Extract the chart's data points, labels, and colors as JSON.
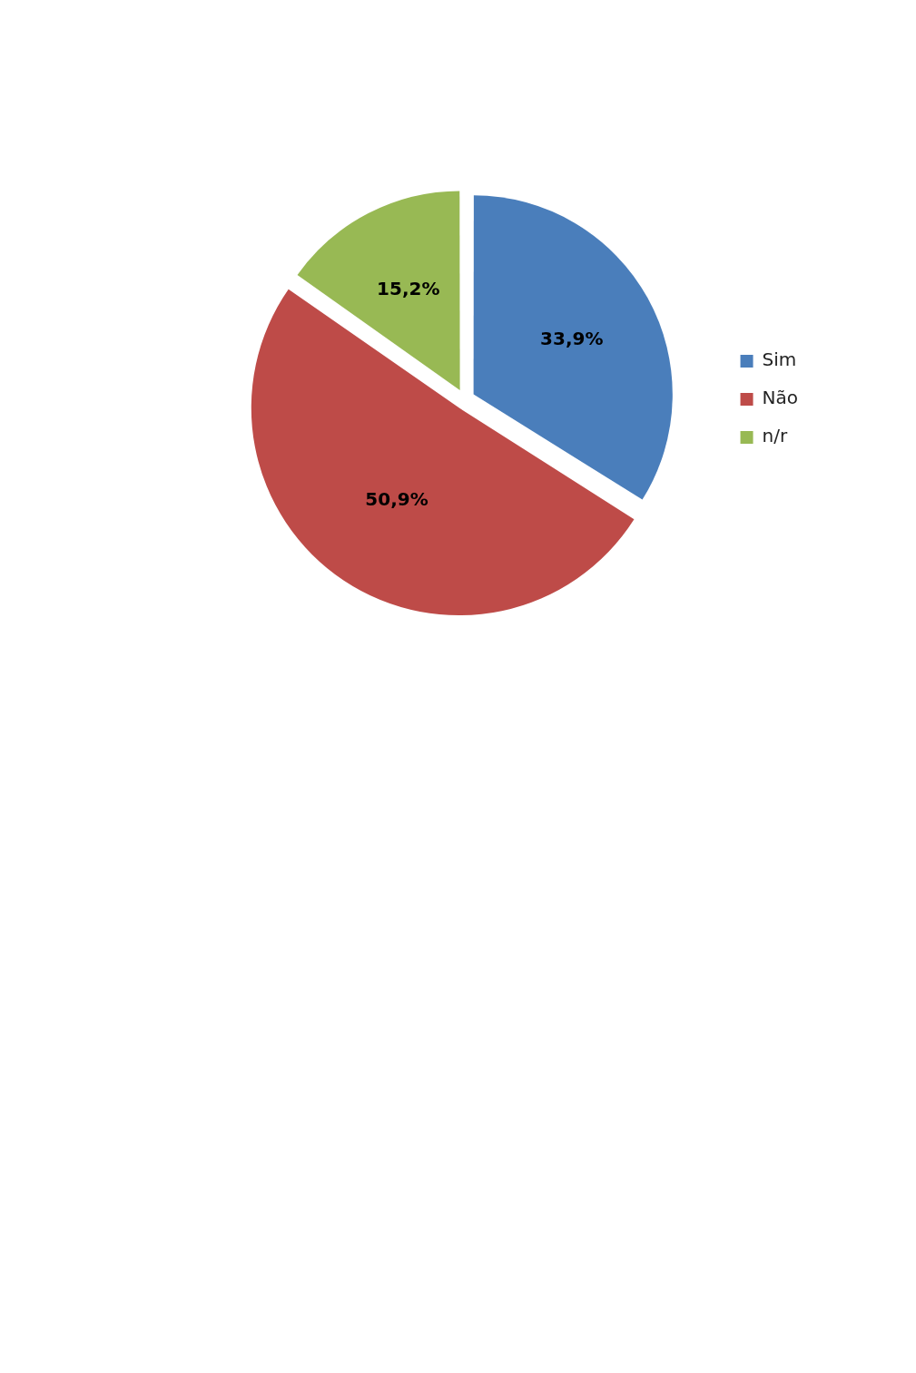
{
  "chart_data": {
    "type": "pie",
    "categories": [
      "Sim",
      "Não",
      "n/r"
    ],
    "values": [
      33.9,
      50.9,
      15.2
    ],
    "colors": [
      "#4a7ebb",
      "#be4b48",
      "#98b954"
    ],
    "value_labels": [
      "33,9%",
      "50,9%",
      "15,2%"
    ],
    "legend": "right"
  }
}
